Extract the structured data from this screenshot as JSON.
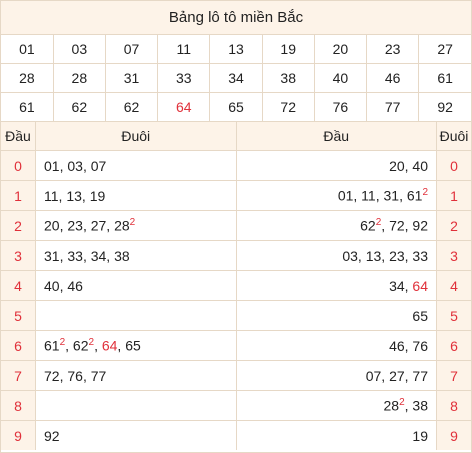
{
  "title": "Bảng lô tô miền Bắc",
  "lo_rows": [
    [
      {
        "n": "01"
      },
      {
        "n": "03"
      },
      {
        "n": "07"
      },
      {
        "n": "11"
      },
      {
        "n": "13"
      },
      {
        "n": "19"
      },
      {
        "n": "20"
      },
      {
        "n": "23"
      },
      {
        "n": "27"
      }
    ],
    [
      {
        "n": "28"
      },
      {
        "n": "28"
      },
      {
        "n": "31"
      },
      {
        "n": "33"
      },
      {
        "n": "34"
      },
      {
        "n": "38"
      },
      {
        "n": "40"
      },
      {
        "n": "46"
      },
      {
        "n": "61"
      }
    ],
    [
      {
        "n": "61"
      },
      {
        "n": "62"
      },
      {
        "n": "62"
      },
      {
        "n": "64",
        "red": true
      },
      {
        "n": "65"
      },
      {
        "n": "72"
      },
      {
        "n": "76"
      },
      {
        "n": "77"
      },
      {
        "n": "92"
      }
    ]
  ],
  "left_headers": {
    "key": "Đầu",
    "val": "Đuôi"
  },
  "right_headers": {
    "val": "Đầu",
    "key": "Đuôi"
  },
  "left_rows": [
    {
      "key": "0",
      "items": [
        {
          "t": "01"
        },
        {
          "t": "03"
        },
        {
          "t": "07"
        }
      ]
    },
    {
      "key": "1",
      "items": [
        {
          "t": "11"
        },
        {
          "t": "13"
        },
        {
          "t": "19"
        }
      ]
    },
    {
      "key": "2",
      "items": [
        {
          "t": "20"
        },
        {
          "t": "23"
        },
        {
          "t": "27"
        },
        {
          "t": "28",
          "sup": "2"
        }
      ]
    },
    {
      "key": "3",
      "items": [
        {
          "t": "31"
        },
        {
          "t": "33"
        },
        {
          "t": "34"
        },
        {
          "t": "38"
        }
      ]
    },
    {
      "key": "4",
      "items": [
        {
          "t": "40"
        },
        {
          "t": "46"
        }
      ]
    },
    {
      "key": "5",
      "items": []
    },
    {
      "key": "6",
      "items": [
        {
          "t": "61",
          "sup": "2"
        },
        {
          "t": "62",
          "sup": "2"
        },
        {
          "t": "64",
          "red": true
        },
        {
          "t": "65"
        }
      ]
    },
    {
      "key": "7",
      "items": [
        {
          "t": "72"
        },
        {
          "t": "76"
        },
        {
          "t": "77"
        }
      ]
    },
    {
      "key": "8",
      "items": []
    },
    {
      "key": "9",
      "items": [
        {
          "t": "92"
        }
      ]
    }
  ],
  "right_rows": [
    {
      "key": "0",
      "items": [
        {
          "t": "20"
        },
        {
          "t": "40"
        }
      ]
    },
    {
      "key": "1",
      "items": [
        {
          "t": "01"
        },
        {
          "t": "11"
        },
        {
          "t": "31"
        },
        {
          "t": "61",
          "sup": "2"
        }
      ]
    },
    {
      "key": "2",
      "items": [
        {
          "t": "62",
          "sup": "2"
        },
        {
          "t": "72"
        },
        {
          "t": "92"
        }
      ]
    },
    {
      "key": "3",
      "items": [
        {
          "t": "03"
        },
        {
          "t": "13"
        },
        {
          "t": "23"
        },
        {
          "t": "33"
        }
      ]
    },
    {
      "key": "4",
      "items": [
        {
          "t": "34"
        },
        {
          "t": "64",
          "red": true
        }
      ]
    },
    {
      "key": "5",
      "items": [
        {
          "t": "65"
        }
      ]
    },
    {
      "key": "6",
      "items": [
        {
          "t": "46"
        },
        {
          "t": "76"
        }
      ]
    },
    {
      "key": "7",
      "items": [
        {
          "t": "07"
        },
        {
          "t": "27"
        },
        {
          "t": "77"
        }
      ]
    },
    {
      "key": "8",
      "items": [
        {
          "t": "28",
          "sup": "2"
        },
        {
          "t": "38"
        }
      ]
    },
    {
      "key": "9",
      "items": [
        {
          "t": "19"
        }
      ]
    }
  ]
}
